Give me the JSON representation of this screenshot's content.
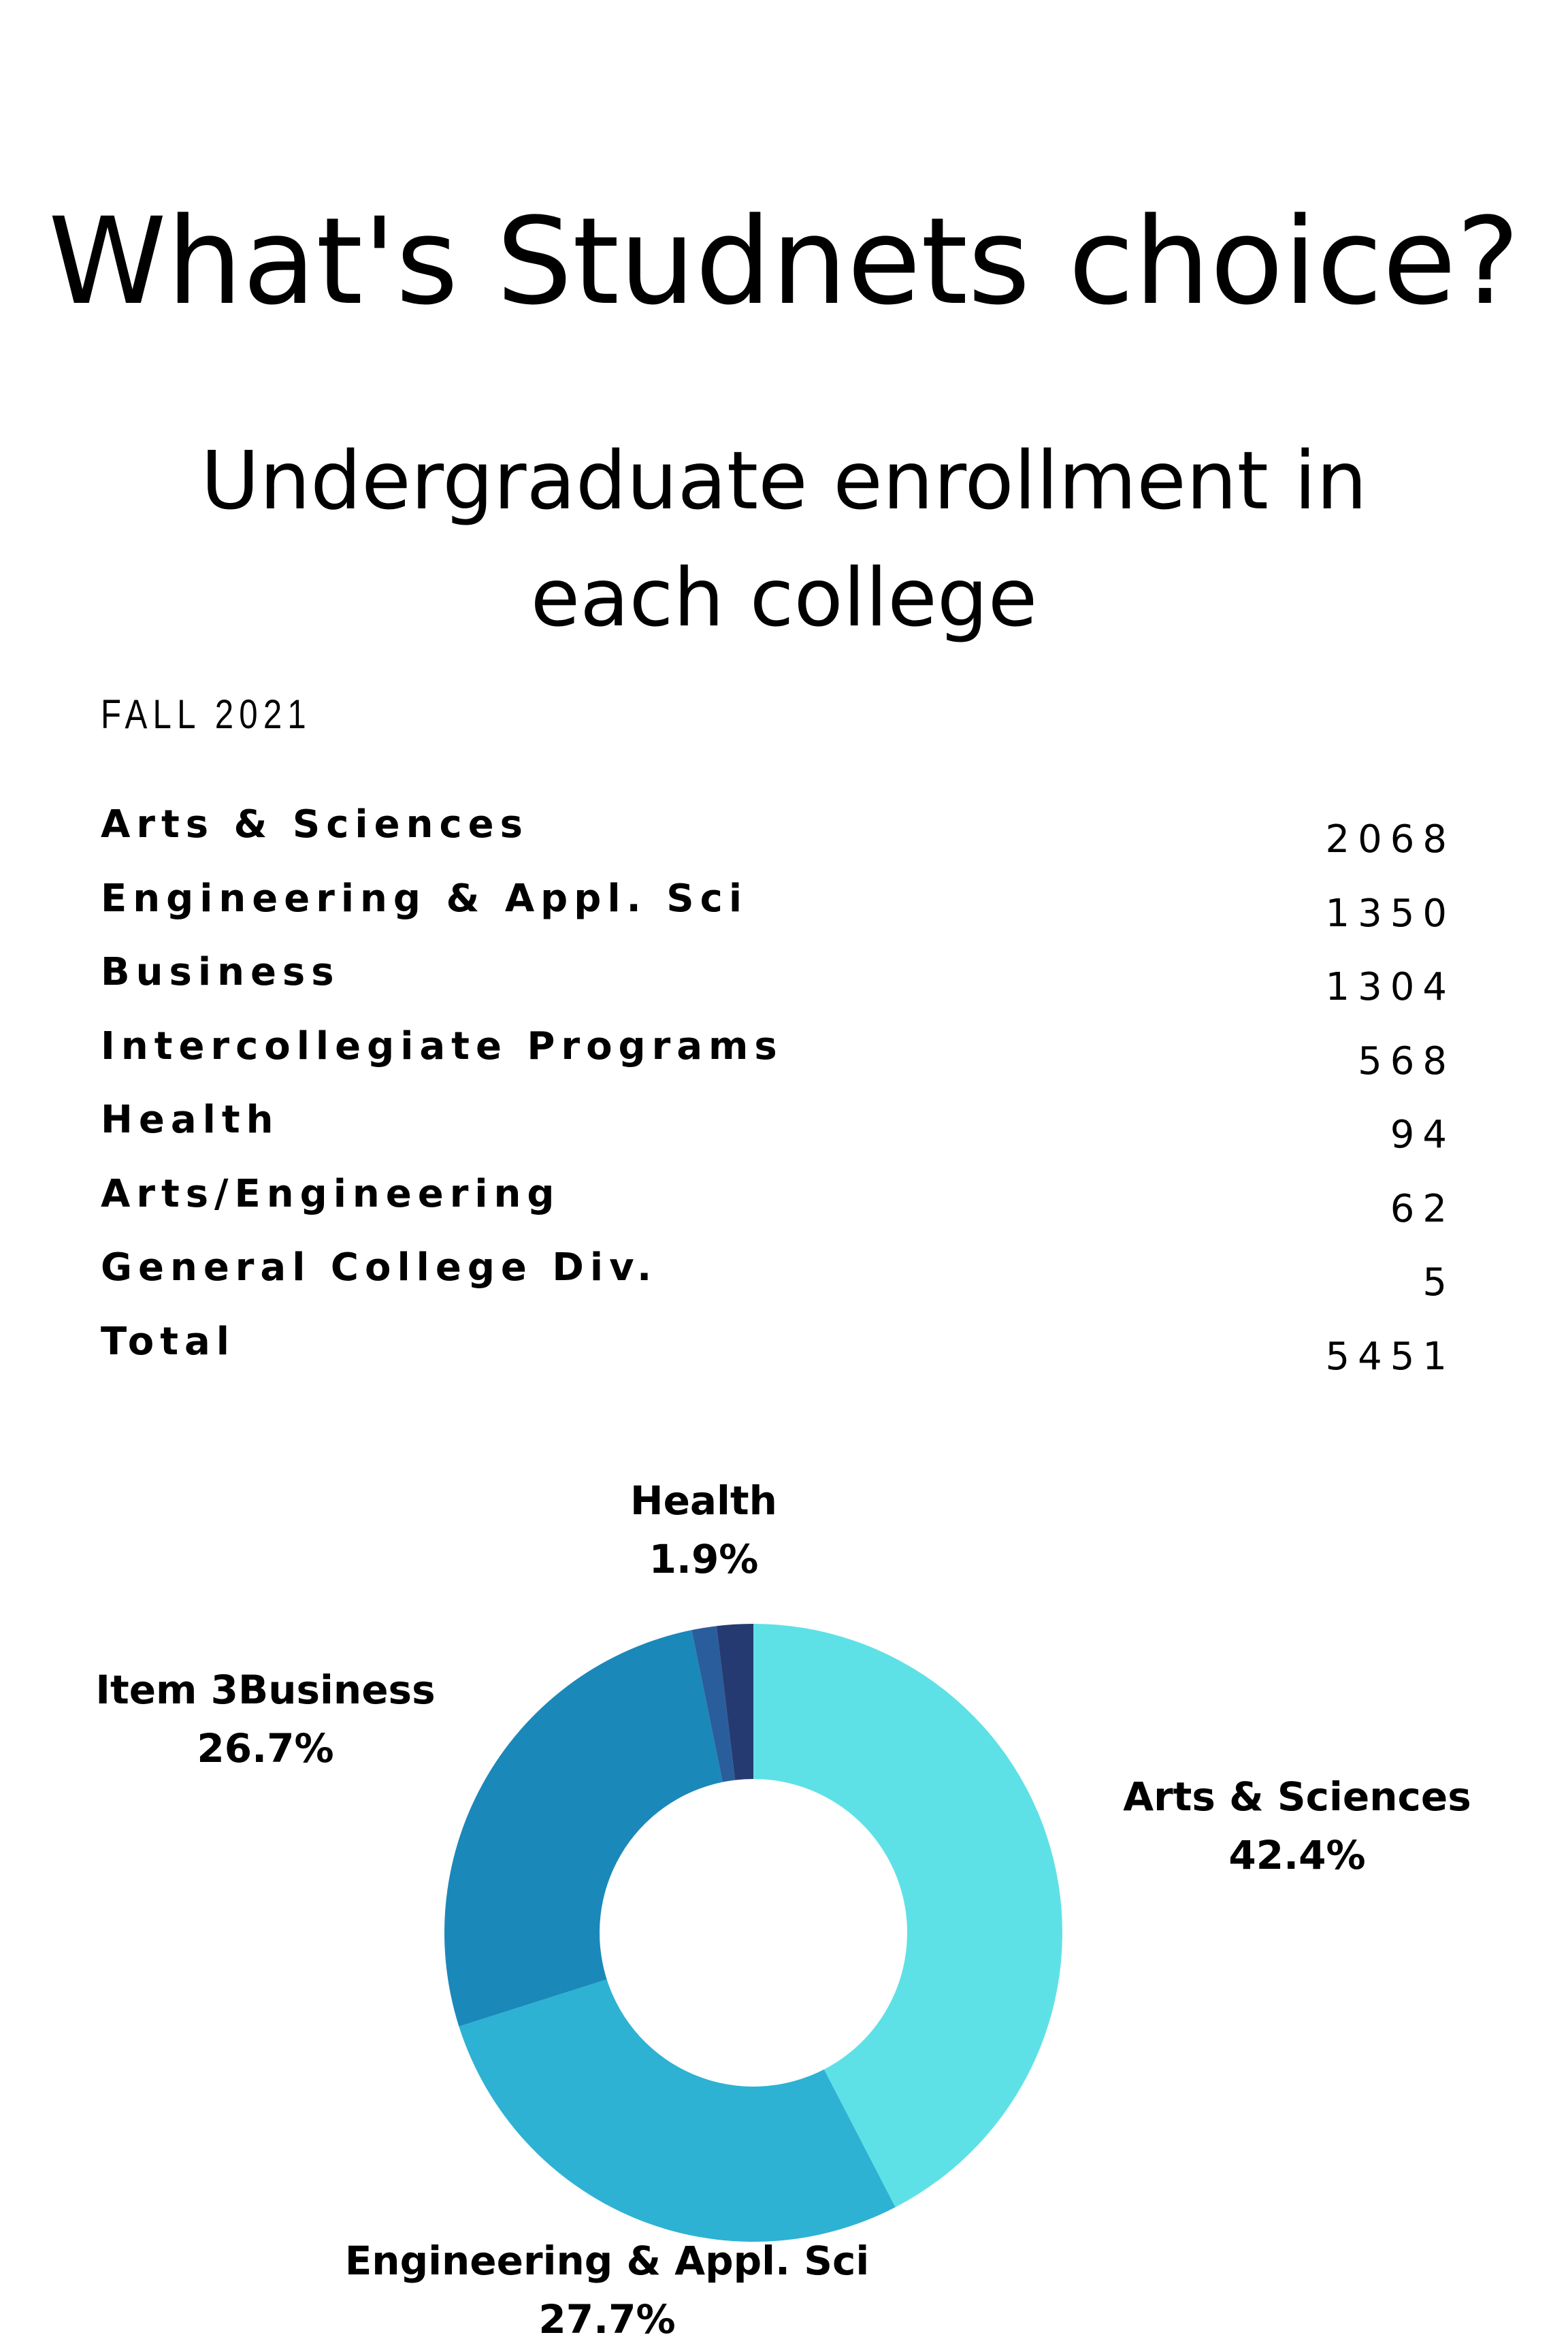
{
  "title": "What's Studnets choice?",
  "subtitle": "Undergraduate enrollment in each college",
  "season": "FALL 2021",
  "table": {
    "rows": [
      {
        "name": "Arts & Sciences",
        "value": "2068"
      },
      {
        "name": "Engineering & Appl. Sci",
        "value": "1350"
      },
      {
        "name": "Business",
        "value": "1304"
      },
      {
        "name": "Intercollegiate Programs",
        "value": "568"
      },
      {
        "name": "Health",
        "value": "94"
      },
      {
        "name": "Arts/Engineering",
        "value": "62"
      },
      {
        "name": "General College Div.",
        "value": "5"
      },
      {
        "name": "Total",
        "value": "5451"
      }
    ]
  },
  "chart_data": {
    "type": "pie",
    "donut": true,
    "slices": [
      {
        "label": "Arts & Sciences",
        "value": 42.4,
        "display": "42.4%",
        "color": "#5ee1e6"
      },
      {
        "label": "Engineering & Appl. Sci",
        "value": 27.7,
        "display": "27.7%",
        "color": "#2db2d4"
      },
      {
        "label": "Item 3Business",
        "value": 26.7,
        "display": "26.7%",
        "color": "#1b88ba"
      },
      {
        "label": "",
        "value": 1.3,
        "display": "",
        "color": "#2a5d9b"
      },
      {
        "label": "Health",
        "value": 1.9,
        "display": "1.9%",
        "color": "#263a72"
      }
    ]
  }
}
